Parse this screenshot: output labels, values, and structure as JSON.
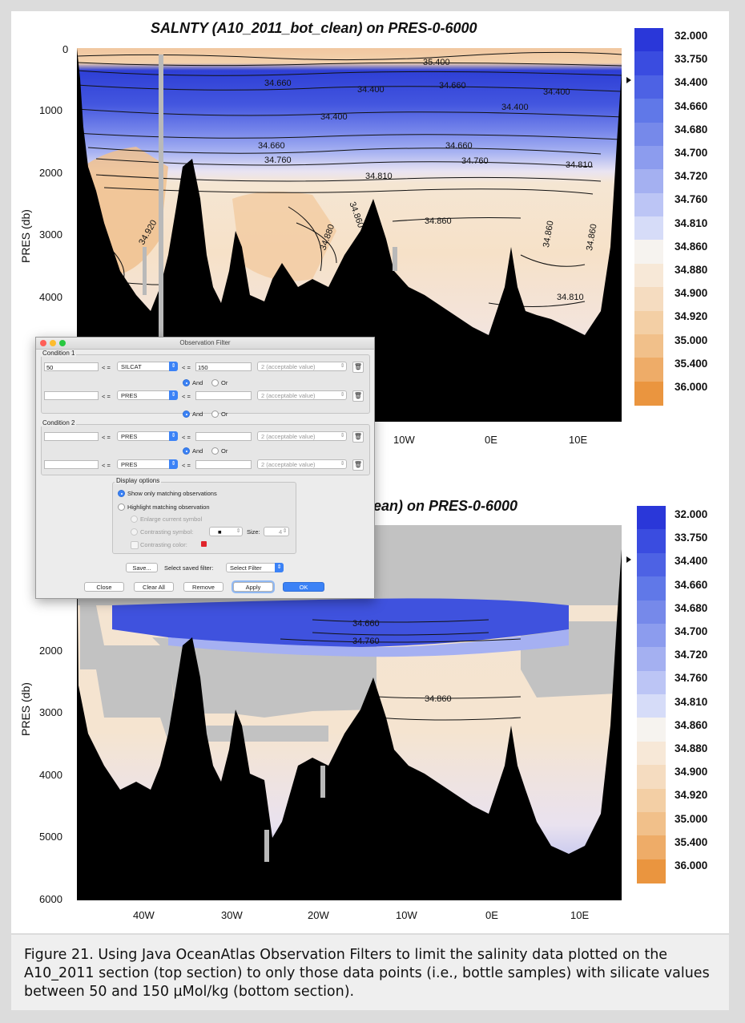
{
  "top_plot": {
    "title": "SALNTY (A10_2011_bot_clean) on PRES-0-6000",
    "ylabel": "PRES (db)",
    "y_ticks": [
      "0",
      "1000",
      "2000",
      "3000",
      "4000"
    ],
    "x_ticks": [
      "10W",
      "0E",
      "10E"
    ]
  },
  "bottom_plot": {
    "title": "ean) on PRES-0-6000",
    "ylabel": "PRES (db)",
    "y_ticks": [
      "2000",
      "3000",
      "4000",
      "5000",
      "6000"
    ],
    "x_ticks": [
      "40W",
      "30W",
      "20W",
      "10W",
      "0E",
      "10E"
    ]
  },
  "colorbar": {
    "labels": [
      "32.000",
      "33.750",
      "34.400",
      "34.660",
      "34.680",
      "34.700",
      "34.720",
      "34.760",
      "34.810",
      "34.860",
      "34.880",
      "34.900",
      "34.920",
      "35.000",
      "35.400",
      "36.000"
    ],
    "colors": [
      "#2a37d9",
      "#3a4ce0",
      "#4d62e4",
      "#6078e8",
      "#7689ea",
      "#8c9cee",
      "#a4b0f1",
      "#bcc5f5",
      "#d6dcf8",
      "#f6f3ef",
      "#f7e8d7",
      "#f5dcc0",
      "#f3cfa5",
      "#f1c08a",
      "#eeac68",
      "#ea953f"
    ]
  },
  "contour_labels_top": [
    "35.400",
    "34.660",
    "34.400",
    "34.660",
    "34.400",
    "34.400",
    "34.400",
    "34.660",
    "34.760",
    "34.660",
    "34.760",
    "34.810",
    "34.810",
    "34.920",
    "34.880",
    "34.860",
    "34.860",
    "34.860",
    "34.860",
    "34.810"
  ],
  "contour_labels_bottom": [
    "34.660",
    "34.760",
    "34.860"
  ],
  "dialog": {
    "title": "Observation Filter",
    "condition1": {
      "label": "Condition 1",
      "row1": {
        "value": "50",
        "op1": "< =",
        "variable": "SILCAT",
        "op2": "< =",
        "value2": "150",
        "quality": "2 (acceptable value)"
      },
      "and_label": "And",
      "or_label": "Or",
      "row2": {
        "value": "",
        "op1": "< =",
        "variable": "PRES",
        "op2": "< =",
        "value2": "",
        "quality": "2 (acceptable value)"
      }
    },
    "between": {
      "and_label": "And",
      "or_label": "Or"
    },
    "condition2": {
      "label": "Condition 2",
      "row1": {
        "value": "",
        "op1": "< =",
        "variable": "PRES",
        "op2": "< =",
        "value2": "",
        "quality": "2 (acceptable value)"
      },
      "and_label": "And",
      "or_label": "Or",
      "row2": {
        "value": "",
        "op1": "< =",
        "variable": "PRES",
        "op2": "< =",
        "value2": "",
        "quality": "2 (acceptable value)"
      }
    },
    "display_options": {
      "label": "Display options",
      "show_only": "Show only matching observations",
      "highlight": "Highlight matching observation",
      "enlarge": "Enlarge current symbol",
      "contrasting_symbol": "Contrasting symbol:",
      "symbol_value": "■",
      "size_label": "Size:",
      "size_value": "4",
      "contrasting_color": "Contrasting color:"
    },
    "save_button": "Save...",
    "saved_filter_label": "Select saved filter:",
    "saved_filter_value": "Select Filter",
    "buttons": {
      "close": "Close",
      "clear_all": "Clear All",
      "remove": "Remove",
      "apply": "Apply",
      "ok": "OK"
    }
  },
  "caption": "Figure 21. Using Java OceanAtlas Observation Filters to limit the salinity data plotted on the A10_2011 section (top section) to only those data points (i.e., bottle samples) with silicate values between 50 and 150 µMol/kg (bottom section)."
}
